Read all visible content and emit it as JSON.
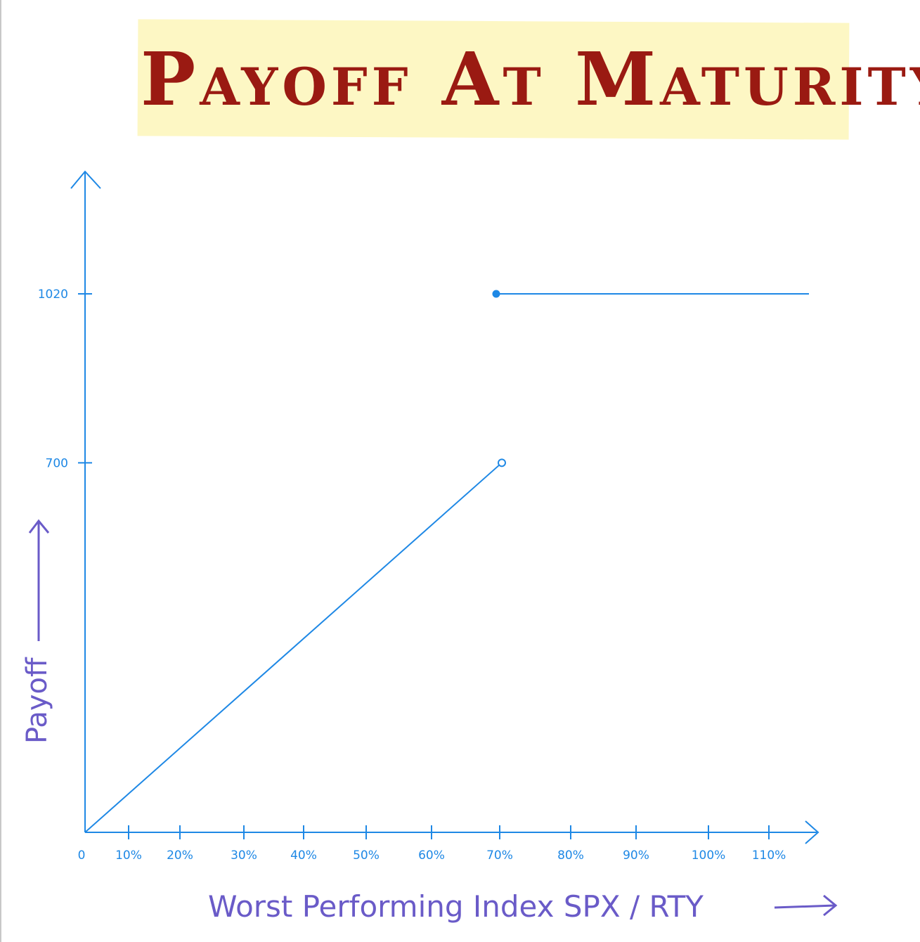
{
  "chart_data": {
    "type": "line",
    "title": "Payoff At Maturity",
    "xlabel": "Worst Performing Index SPX / RTY",
    "ylabel": "Payoff",
    "x_tick_labels": [
      "0",
      "10%",
      "20%",
      "30%",
      "40%",
      "50%",
      "60%",
      "70%",
      "80%",
      "90%",
      "100%",
      "110%"
    ],
    "y_tick_labels": [
      "700",
      "1020"
    ],
    "xlim": [
      0,
      110
    ],
    "ylim": [
      0,
      1020
    ],
    "series": [
      {
        "segment": "below-barrier",
        "x": [
          0,
          70
        ],
        "y": [
          0,
          700
        ],
        "end_marker": "open-circle"
      },
      {
        "segment": "at-or-above-barrier",
        "x": [
          70,
          110
        ],
        "y": [
          1020,
          1020
        ],
        "start_marker": "filled-circle"
      }
    ],
    "grid": false,
    "legend": "none"
  },
  "colors": {
    "axis": "#1e88e5",
    "line": "#1e88e5",
    "axis_title": "#6a5bc8",
    "title_text": "#9a1a12",
    "title_background": "#fdf7c4"
  }
}
